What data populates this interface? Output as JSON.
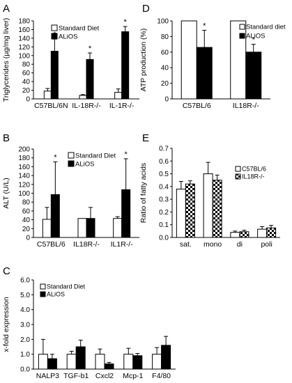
{
  "chart_data": [
    {
      "panel": "A",
      "type": "bar",
      "ylabel": "Triglycerides (µg/mg liver)",
      "ylim": [
        0,
        180
      ],
      "yticks": [
        0,
        20,
        40,
        60,
        80,
        100,
        120,
        140,
        160,
        180
      ],
      "categories": [
        "C57BL/6N",
        "IL-18R-/-",
        "IL-1R-/-"
      ],
      "series": [
        {
          "name": "Standard Diet",
          "fill": "white",
          "values": [
            18,
            8,
            15
          ],
          "errors": [
            6,
            2,
            8
          ]
        },
        {
          "name": "ALiOS",
          "fill": "black",
          "values": [
            110,
            91,
            155
          ],
          "errors": [
            28,
            15,
            12
          ]
        }
      ],
      "significance": [
        "*",
        "*",
        "*"
      ],
      "legend": "top-left"
    },
    {
      "panel": "B",
      "type": "bar",
      "ylabel": "ALT (U/L)",
      "ylim": [
        0,
        200
      ],
      "yticks": [
        0,
        20,
        40,
        60,
        80,
        100,
        120,
        140,
        160,
        180,
        200
      ],
      "categories": [
        "C57BL/6",
        "IL18R-/-",
        "IL1R-/-"
      ],
      "series": [
        {
          "name": "Standard Diet",
          "fill": "white",
          "values": [
            41,
            43,
            43
          ],
          "errors": [
            27,
            0,
            4
          ]
        },
        {
          "name": "ALiOS",
          "fill": "black",
          "values": [
            97,
            43,
            108
          ],
          "errors": [
            74,
            25,
            70
          ]
        }
      ],
      "significance": [
        "*",
        "",
        "*"
      ],
      "legend": "top-center"
    },
    {
      "panel": "C",
      "type": "bar",
      "ylabel": "x-fold expression",
      "ylim": [
        0,
        6
      ],
      "yticks": [
        "0.0",
        "1.0",
        "2.0",
        "3.0",
        "4.0",
        "5.0",
        "6.0"
      ],
      "categories": [
        "NALP3",
        "TGF-b1",
        "Cxcl2",
        "Mcp-1",
        "F4/80"
      ],
      "series": [
        {
          "name": "Standard Diet",
          "fill": "white",
          "values": [
            1.0,
            1.0,
            1.0,
            1.0,
            1.0
          ],
          "errors": [
            1.0,
            0.2,
            0.35,
            0.4,
            0.45
          ]
        },
        {
          "name": "ALiOS",
          "fill": "black",
          "values": [
            0.7,
            1.5,
            0.35,
            0.9,
            1.6
          ],
          "errors": [
            0.3,
            0.45,
            0.1,
            0.15,
            0.6
          ]
        }
      ],
      "significance": [
        "",
        "",
        "",
        "",
        ""
      ],
      "legend": "top-left"
    },
    {
      "panel": "D",
      "type": "bar",
      "ylabel": "ATP production (%)",
      "ylim": [
        0,
        100
      ],
      "yticks": [
        0,
        20,
        40,
        60,
        80,
        100
      ],
      "categories": [
        "C57BL/6",
        "IL18R-/-"
      ],
      "series": [
        {
          "name": "Standard diet",
          "fill": "white",
          "values": [
            100,
            100
          ],
          "errors": [
            0,
            0
          ]
        },
        {
          "name": "ALiOS",
          "fill": "black",
          "values": [
            66,
            60
          ],
          "errors": [
            22,
            10
          ]
        }
      ],
      "significance": [
        "*",
        "*"
      ],
      "legend": "top-right"
    },
    {
      "panel": "E",
      "type": "bar",
      "ylabel": "Ratio of fatty acids",
      "ylim": [
        0,
        0.7
      ],
      "yticks": [
        "0.0",
        "0.1",
        "0.2",
        "0.3",
        "0.4",
        "0.5",
        "0.6",
        "0.7"
      ],
      "categories": [
        "sat.",
        "mono",
        "di",
        "poli"
      ],
      "series": [
        {
          "name": "C57BL/6",
          "fill": "white",
          "values": [
            0.38,
            0.5,
            0.04,
            0.065
          ],
          "errors": [
            0.06,
            0.09,
            0.01,
            0.02
          ]
        },
        {
          "name": "IL18R-/-",
          "fill": "check",
          "values": [
            0.42,
            0.45,
            0.045,
            0.075
          ],
          "errors": [
            0.025,
            0.04,
            0.012,
            0.02
          ]
        }
      ],
      "significance": [
        "",
        "",
        "",
        ""
      ],
      "legend": "top-right"
    }
  ]
}
